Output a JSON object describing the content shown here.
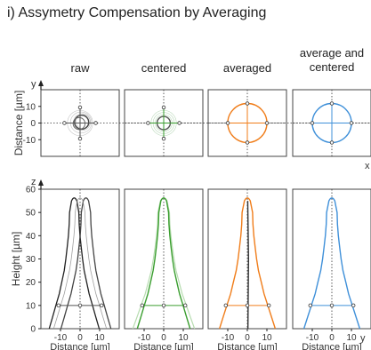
{
  "title": "i) Assymetry Compensation by Averaging",
  "columns": [
    {
      "key": "raw",
      "title_lines": [
        "raw"
      ],
      "color": "#555555"
    },
    {
      "key": "centered",
      "title_lines": [
        "centered"
      ],
      "color": "#3a9e2f"
    },
    {
      "key": "averaged",
      "title_lines": [
        "averaged"
      ],
      "color": "#f07d1a"
    },
    {
      "key": "avg_centered",
      "title_lines": [
        "average and",
        "centered"
      ],
      "color": "#3f90d9"
    }
  ],
  "chart_data": [
    {
      "type": "line",
      "panel": "top-view",
      "xlabel": "",
      "ylabel": "Distance [µm]",
      "axis_letter_y": "y",
      "axis_letter_x": "x",
      "xlim": [
        -20,
        20
      ],
      "ylim": [
        -20,
        20
      ],
      "yticks": [
        10,
        0,
        -10
      ],
      "ytick_labels": [
        "10",
        "0",
        "-10"
      ],
      "contour_radius": {
        "raw": 8,
        "centered": 8,
        "averaged": 10,
        "avg_centered": 10
      }
    },
    {
      "type": "line",
      "panel": "side-view",
      "xlabel": "Distance [µm]",
      "ylabel": "Height [µm]",
      "axis_letter_y": "z",
      "axis_letter_x": "y",
      "xlim": [
        -20,
        20
      ],
      "ylim": [
        0,
        60
      ],
      "yticks": [
        60,
        50,
        40,
        30,
        20,
        10,
        0
      ],
      "ytick_labels": [
        "60",
        "50",
        "40",
        "30",
        "20",
        "10",
        "0"
      ],
      "xticks": [
        -10,
        0,
        10
      ],
      "xtick_labels": [
        "-10",
        "0",
        "10"
      ],
      "marker_height": 10,
      "profile": {
        "heights": [
          0,
          5,
          10,
          15,
          20,
          25,
          30,
          35,
          40,
          45,
          50,
          55
        ],
        "half_width": [
          15,
          13,
          11,
          9,
          7.5,
          6,
          5,
          4.2,
          3.5,
          3,
          2.8,
          1.6
        ]
      }
    }
  ]
}
